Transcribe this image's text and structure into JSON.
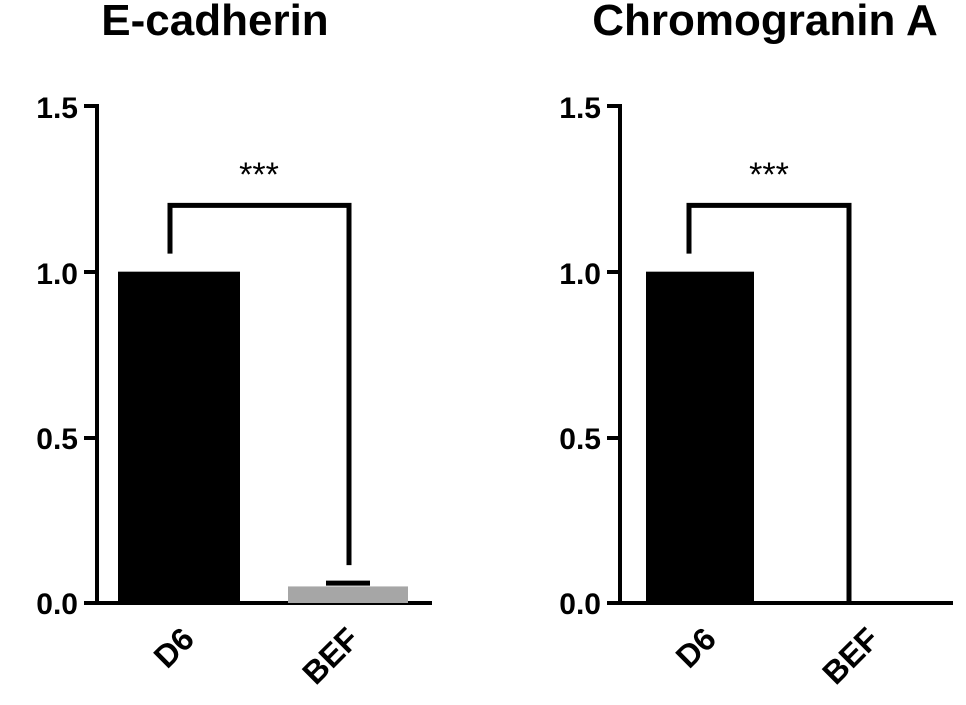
{
  "chart_data": [
    {
      "type": "bar",
      "title": "E-cadherin",
      "categories": [
        "D6",
        "BEF"
      ],
      "values": [
        1.0,
        0.05
      ],
      "error": [
        0.0,
        0.01
      ],
      "bar_colors": [
        "#000000",
        "#a6a6a6"
      ],
      "ylim": [
        0,
        1.5
      ],
      "yticks": [
        "0.0",
        "0.5",
        "1.0",
        "1.5"
      ],
      "significance": {
        "label": "***",
        "between": [
          "D6",
          "BEF"
        ],
        "level": 1.2
      }
    },
    {
      "type": "bar",
      "title": "Chromogranin A",
      "categories": [
        "D6",
        "BEF"
      ],
      "values": [
        1.0,
        0.0
      ],
      "error": [
        0.0,
        0.0
      ],
      "bar_colors": [
        "#000000",
        "#a6a6a6"
      ],
      "ylim": [
        0,
        1.5
      ],
      "yticks": [
        "0.0",
        "0.5",
        "1.0",
        "1.5"
      ],
      "significance": {
        "label": "***",
        "between": [
          "D6",
          "BEF"
        ],
        "level": 1.2
      }
    }
  ]
}
